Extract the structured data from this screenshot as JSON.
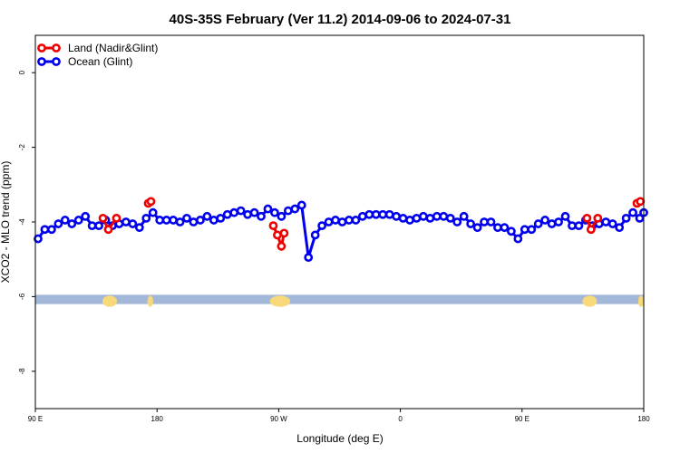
{
  "chart_data": {
    "type": "line",
    "title": "40S-35S February (Ver 11.2)   2014-09-06 to 2024-07-31",
    "xlabel": "Longitude (deg E)",
    "ylabel": "XCO2 - MLO trend (ppm)",
    "xlim": [
      90,
      450
    ],
    "ylim": [
      -9,
      1
    ],
    "x_ticks": [
      {
        "value": 90,
        "label": "90 E"
      },
      {
        "value": 180,
        "label": "180"
      },
      {
        "value": 270,
        "label": "90 W"
      },
      {
        "value": 360,
        "label": "0"
      },
      {
        "value": 450,
        "label": "90 E"
      },
      {
        "value": 540,
        "label": "180"
      }
    ],
    "y_ticks": [
      {
        "value": 0,
        "label": "0"
      },
      {
        "value": -2,
        "label": "-2"
      },
      {
        "value": -4,
        "label": "-4"
      },
      {
        "value": -6,
        "label": "-6"
      },
      {
        "value": -8,
        "label": "-8"
      }
    ],
    "legend_position": "top-left",
    "map_band": {
      "y_top": -5.95,
      "y_bottom": -6.2,
      "ocean_color": "#a3b8d8",
      "land_color": "#f7d97a"
    },
    "series": [
      {
        "name": "Land (Nadir&Glint)",
        "color": "#ee0000",
        "segments": [
          {
            "x": [
              140,
              144,
              150
            ],
            "y": [
              -3.9,
              -4.2,
              -3.9
            ]
          },
          {
            "x": [
              173.5,
              175.5
            ],
            "y": [
              -3.5,
              -3.45
            ]
          },
          {
            "x": [
              266,
              269,
              272,
              274
            ],
            "y": [
              -4.1,
              -4.35,
              -4.65,
              -4.3
            ]
          },
          {
            "x": [
              498,
              501,
              506
            ],
            "y": [
              -3.9,
              -4.2,
              -3.9
            ]
          },
          {
            "x": [
              535,
              537.5
            ],
            "y": [
              -3.5,
              -3.45
            ]
          }
        ]
      },
      {
        "name": "Ocean (Glint)",
        "color": "#0000ee",
        "segments": [
          {
            "x": [
              92,
              97,
              102,
              107,
              112,
              117,
              122,
              127,
              132,
              137,
              142,
              147,
              152,
              157,
              162,
              167,
              172,
              177,
              182,
              187,
              192,
              197,
              202,
              207,
              212,
              217,
              222,
              227,
              232,
              237,
              242,
              247,
              252,
              257,
              262,
              267,
              272,
              277,
              282,
              287,
              292,
              297,
              302,
              307,
              312,
              317,
              322,
              327,
              332,
              337,
              342,
              347,
              352,
              357,
              362,
              367,
              372,
              377,
              382,
              387,
              392,
              397,
              402,
              407,
              412,
              417,
              422,
              427,
              432,
              437,
              442,
              447,
              452,
              457,
              462,
              467,
              472,
              477,
              482,
              487,
              492,
              497,
              502,
              507,
              512,
              517,
              522,
              527,
              532,
              537,
              540
            ],
            "y": [
              -4.45,
              -4.2,
              -4.2,
              -4.05,
              -3.95,
              -4.05,
              -3.95,
              -3.85,
              -4.1,
              -4.1,
              -3.95,
              -4.1,
              -4.05,
              -4.0,
              -4.05,
              -4.15,
              -3.9,
              -3.75,
              -3.95,
              -3.95,
              -3.95,
              -4.0,
              -3.9,
              -4.0,
              -3.95,
              -3.85,
              -3.95,
              -3.9,
              -3.8,
              -3.75,
              -3.7,
              -3.8,
              -3.75,
              -3.85,
              -3.65,
              -3.75,
              -3.85,
              -3.7,
              -3.65,
              -3.55,
              -4.95,
              -4.35,
              -4.1,
              -4.0,
              -3.95,
              -4.0,
              -3.95,
              -3.95,
              -3.85,
              -3.8,
              -3.8,
              -3.8,
              -3.8,
              -3.85,
              -3.9,
              -3.95,
              -3.9,
              -3.85,
              -3.9,
              -3.85,
              -3.85,
              -3.9,
              -4.0,
              -3.85,
              -4.05,
              -4.15,
              -4.0,
              -4.0,
              -4.15,
              -4.15,
              -4.25,
              -4.45,
              -4.2,
              -4.2,
              -4.05,
              -3.95,
              -4.05,
              -4.0,
              -3.85,
              -4.1,
              -4.1,
              -3.95,
              -4.1,
              -4.05,
              -4.0,
              -4.05,
              -4.15,
              -3.9,
              -3.75,
              -3.9,
              -3.75
            ]
          }
        ]
      }
    ]
  }
}
